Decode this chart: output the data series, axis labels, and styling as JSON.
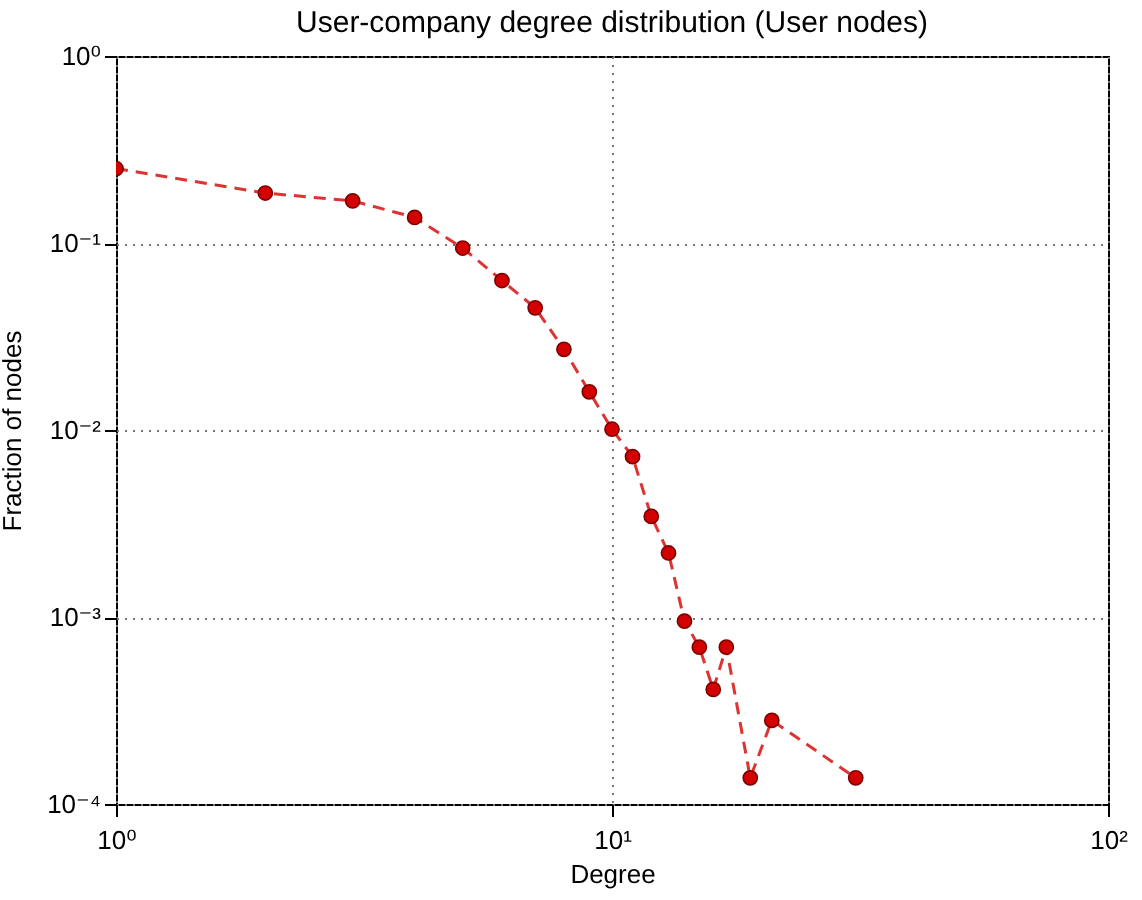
{
  "chart_data": {
    "type": "line",
    "title": "User-company degree distribution (User nodes)",
    "xlabel": "Degree",
    "ylabel": "Fraction of nodes",
    "log": "xy",
    "grid": true,
    "marker": "circle",
    "line_style": "dashed",
    "xlim": [
      1,
      100
    ],
    "ylim": [
      0.0001,
      1
    ],
    "xticks": [
      {
        "value": 1,
        "label": "10⁰"
      },
      {
        "value": 10,
        "label": "10¹"
      },
      {
        "value": 100,
        "label": "10²"
      }
    ],
    "yticks": [
      {
        "value": 0.0001,
        "label": "10⁻⁴"
      },
      {
        "value": 0.001,
        "label": "10⁻³"
      },
      {
        "value": 0.01,
        "label": "10⁻²"
      },
      {
        "value": 0.1,
        "label": "10⁻¹"
      },
      {
        "value": 1,
        "label": "10⁰"
      }
    ],
    "x": [
      1,
      2,
      3,
      4,
      5,
      6,
      7,
      8,
      9,
      10,
      11,
      12,
      13,
      14,
      15,
      16,
      17,
      19,
      21,
      31
    ],
    "series": [
      {
        "color": "#d40000",
        "values": [
          0.25,
          0.185,
          0.168,
          0.137,
          0.094,
          0.063,
          0.045,
          0.027,
          0.016,
          0.0101,
          0.0072,
          0.00345,
          0.0022,
          0.00095,
          0.00069,
          0.00041,
          0.00069,
          0.000138,
          0.00028,
          0.000138
        ]
      }
    ]
  }
}
